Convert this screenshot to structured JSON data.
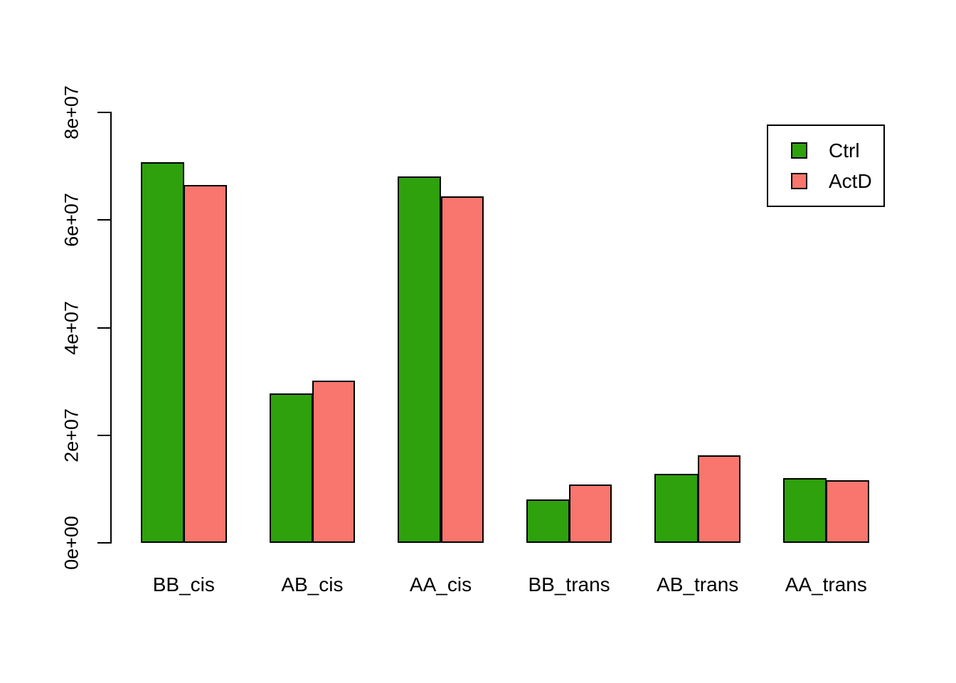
{
  "figure": {
    "background": "#ffffff",
    "title": ""
  },
  "chart_data": {
    "type": "bar",
    "grouped": true,
    "categories": [
      "BB_cis",
      "AB_cis",
      "AA_cis",
      "BB_trans",
      "AB_trans",
      "AA_trans"
    ],
    "series": [
      {
        "name": "Ctrl",
        "color": "#2ea10d",
        "values": [
          70800000,
          27800000,
          68100000,
          8100000,
          12800000,
          12000000
        ]
      },
      {
        "name": "ActD",
        "color": "#f8766d",
        "values": [
          66500000,
          30100000,
          64400000,
          10800000,
          16300000,
          11600000
        ]
      }
    ],
    "title": "",
    "xlabel": "",
    "ylabel": "",
    "ylim": [
      0,
      80000000
    ],
    "yticks": [
      {
        "value": 0,
        "label": "0e+00"
      },
      {
        "value": 20000000,
        "label": "2e+07"
      },
      {
        "value": 40000000,
        "label": "4e+07"
      },
      {
        "value": 60000000,
        "label": "6e+07"
      },
      {
        "value": 80000000,
        "label": "8e+07"
      }
    ],
    "grid": false,
    "bar_border_color": "#000000",
    "axis_color": "#000000",
    "legend": {
      "position": "top-right",
      "entries": [
        "Ctrl",
        "ActD"
      ]
    }
  }
}
